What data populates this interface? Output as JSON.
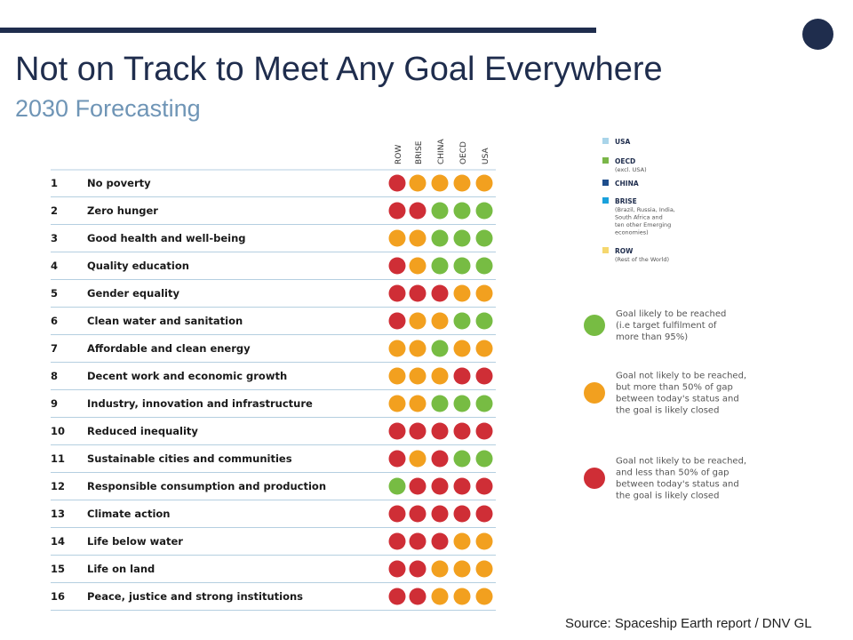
{
  "header": {
    "title": "Not on Track to Meet Any Goal Everywhere",
    "subtitle": "2030 Forecasting"
  },
  "footer": {
    "source": "Source: Spaceship Earth report / DNV GL"
  },
  "chart_data": {
    "type": "table",
    "columns": [
      "ROW",
      "BRISE",
      "CHINA",
      "OECD",
      "USA"
    ],
    "rows": [
      {
        "num": "1",
        "goal": "No poverty",
        "status": [
          "red",
          "orange",
          "orange",
          "orange",
          "orange"
        ]
      },
      {
        "num": "2",
        "goal": "Zero hunger",
        "status": [
          "red",
          "red",
          "green",
          "green",
          "green"
        ]
      },
      {
        "num": "3",
        "goal": "Good health and well-being",
        "status": [
          "orange",
          "orange",
          "green",
          "green",
          "green"
        ]
      },
      {
        "num": "4",
        "goal": "Quality education",
        "status": [
          "red",
          "orange",
          "green",
          "green",
          "green"
        ]
      },
      {
        "num": "5",
        "goal": "Gender equality",
        "status": [
          "red",
          "red",
          "red",
          "orange",
          "orange"
        ]
      },
      {
        "num": "6",
        "goal": "Clean water and sanitation",
        "status": [
          "red",
          "orange",
          "orange",
          "green",
          "green"
        ]
      },
      {
        "num": "7",
        "goal": "Affordable and clean energy",
        "status": [
          "orange",
          "orange",
          "green",
          "orange",
          "orange"
        ]
      },
      {
        "num": "8",
        "goal": "Decent work and economic growth",
        "status": [
          "orange",
          "orange",
          "orange",
          "red",
          "red"
        ]
      },
      {
        "num": "9",
        "goal": "Industry, innovation and infrastructure",
        "status": [
          "orange",
          "orange",
          "green",
          "green",
          "green"
        ]
      },
      {
        "num": "10",
        "goal": "Reduced inequality",
        "status": [
          "red",
          "red",
          "red",
          "red",
          "red"
        ]
      },
      {
        "num": "11",
        "goal": "Sustainable cities and communities",
        "status": [
          "red",
          "orange",
          "red",
          "green",
          "green"
        ]
      },
      {
        "num": "12",
        "goal": "Responsible consumption and production",
        "status": [
          "green",
          "red",
          "red",
          "red",
          "red"
        ]
      },
      {
        "num": "13",
        "goal": "Climate action",
        "status": [
          "red",
          "red",
          "red",
          "red",
          "red"
        ]
      },
      {
        "num": "14",
        "goal": "Life below water",
        "status": [
          "red",
          "red",
          "red",
          "orange",
          "orange"
        ]
      },
      {
        "num": "15",
        "goal": "Life on land",
        "status": [
          "red",
          "red",
          "orange",
          "orange",
          "orange"
        ]
      },
      {
        "num": "16",
        "goal": "Peace, justice and strong institutions",
        "status": [
          "red",
          "red",
          "orange",
          "orange",
          "orange"
        ]
      }
    ],
    "region_legend": [
      {
        "label": "USA",
        "detail": [],
        "color": "#a9d4e9"
      },
      {
        "label": "OECD",
        "detail": [
          "(excl. USA)"
        ],
        "color": "#7ab648"
      },
      {
        "label": "CHINA",
        "detail": [],
        "color": "#1f4e8c"
      },
      {
        "label": "BRISE",
        "detail": [
          "(Brazil, Russia, India,",
          "South Africa and",
          "ten other Emerging",
          "economies)"
        ],
        "color": "#1aa1dc"
      },
      {
        "label": "ROW",
        "detail": [
          "(Rest of the World)"
        ],
        "color": "#f5d76e"
      }
    ],
    "status_legend": [
      {
        "key": "green",
        "lines": [
          "Goal likely to be reached",
          "(i.e target fulfilment of",
          "more than 95%)"
        ]
      },
      {
        "key": "orange",
        "lines": [
          "Goal not likely to be reached,",
          "but more than 50% of gap",
          "between today's status and",
          "the goal is likely closed"
        ]
      },
      {
        "key": "red",
        "lines": [
          "Goal not likely to be reached,",
          "and less than 50% of gap",
          "between today's status and",
          "the goal is likely closed"
        ]
      }
    ],
    "status_colors": {
      "green": "#77bc43",
      "orange": "#f2a01f",
      "red": "#cf2e36"
    }
  }
}
